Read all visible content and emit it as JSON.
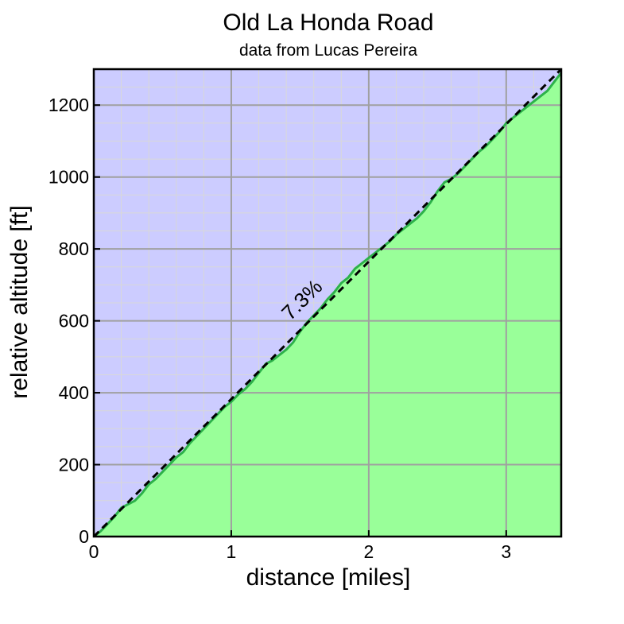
{
  "chart_data": {
    "type": "area",
    "title": "Old La Honda Road",
    "subtitle": "data from Lucas Pereira",
    "xlabel": "distance [miles]",
    "ylabel": "relative altitude [ft]",
    "xlim": [
      0,
      3.4
    ],
    "ylim": [
      0,
      1300
    ],
    "xticks": [
      0,
      1,
      2,
      3
    ],
    "yticks": [
      0,
      200,
      400,
      600,
      800,
      1000,
      1200
    ],
    "grid": true,
    "grade_label": "7.3%",
    "reference_line": {
      "x": [
        0,
        3.4
      ],
      "y": [
        0,
        1300
      ]
    },
    "x": [
      0,
      0.05,
      0.1,
      0.15,
      0.2,
      0.25,
      0.3,
      0.35,
      0.4,
      0.45,
      0.5,
      0.55,
      0.6,
      0.65,
      0.7,
      0.75,
      0.8,
      0.85,
      0.9,
      0.95,
      1.0,
      1.05,
      1.1,
      1.15,
      1.2,
      1.25,
      1.3,
      1.35,
      1.4,
      1.45,
      1.5,
      1.55,
      1.6,
      1.65,
      1.7,
      1.75,
      1.8,
      1.85,
      1.9,
      1.95,
      2.0,
      2.05,
      2.1,
      2.15,
      2.2,
      2.25,
      2.3,
      2.35,
      2.4,
      2.45,
      2.5,
      2.55,
      2.6,
      2.65,
      2.7,
      2.75,
      2.8,
      2.85,
      2.9,
      2.95,
      3.0,
      3.05,
      3.1,
      3.15,
      3.2,
      3.25,
      3.3,
      3.35,
      3.4
    ],
    "y": [
      0,
      15,
      35,
      55,
      80,
      90,
      100,
      120,
      145,
      160,
      180,
      200,
      220,
      235,
      260,
      280,
      300,
      320,
      340,
      360,
      375,
      395,
      410,
      430,
      455,
      480,
      490,
      505,
      520,
      540,
      570,
      595,
      615,
      635,
      660,
      680,
      705,
      720,
      745,
      760,
      775,
      790,
      805,
      820,
      840,
      855,
      870,
      885,
      905,
      930,
      960,
      985,
      995,
      1010,
      1030,
      1050,
      1070,
      1085,
      1105,
      1125,
      1150,
      1165,
      1180,
      1195,
      1210,
      1225,
      1240,
      1265,
      1290
    ]
  },
  "colors": {
    "sky": "#ccccff",
    "ground": "#99ff99",
    "profile_line": "#2db24a",
    "grade_line": "#000000",
    "minor_grid": "#d8d8d8",
    "major_grid": "#a0a0a0",
    "frame": "#000000"
  }
}
